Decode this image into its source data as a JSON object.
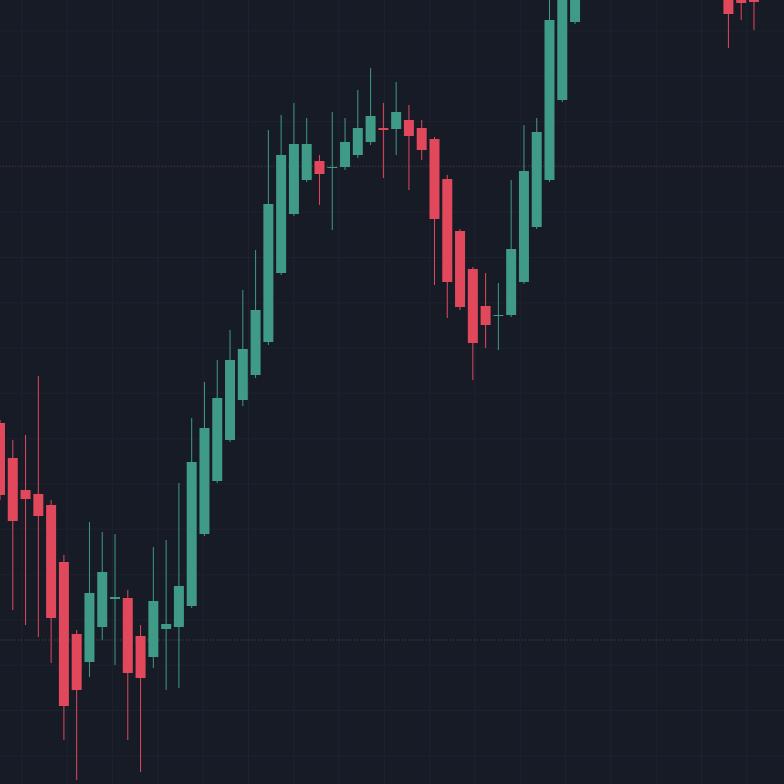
{
  "chart_data": {
    "type": "candlestick",
    "open": [
      361,
      326,
      294,
      290,
      279,
      222,
      150,
      122,
      157,
      185,
      186,
      148,
      127,
      155,
      157,
      178,
      250,
      303,
      344,
      384,
      409,
      442,
      511,
      570,
      604,
      623,
      616,
      617,
      629,
      642,
      656,
      655,
      664,
      656,
      645,
      605,
      553,
      515,
      478,
      468,
      469,
      502,
      557,
      604,
      684,
      762,
      null,
      null,
      null,
      null,
      null,
      null,
      null,
      null,
      null,
      null,
      null,
      800,
      790,
      790
    ],
    "high": [
      364,
      344,
      349,
      408,
      284,
      229,
      154,
      262,
      252,
      250,
      194,
      159,
      237,
      244,
      301,
      366,
      402,
      424,
      454,
      494,
      534,
      654,
      669,
      681,
      666,
      629,
      672,
      666,
      694,
      716,
      681,
      702,
      679,
      664,
      647,
      609,
      555,
      517,
      511,
      501,
      604,
      659,
      666,
      800,
      815,
      800,
      null,
      null,
      null,
      null,
      null,
      null,
      null,
      null,
      null,
      null,
      null,
      810,
      800,
      795
    ],
    "low": [
      284,
      174,
      159,
      147,
      121,
      44,
      4,
      107,
      144,
      119,
      44,
      12,
      116,
      94,
      96,
      176,
      248,
      301,
      342,
      378,
      406,
      439,
      509,
      568,
      602,
      579,
      554,
      614,
      626,
      639,
      606,
      629,
      594,
      624,
      499,
      466,
      474,
      404,
      436,
      434,
      467,
      500,
      555,
      602,
      682,
      760,
      null,
      null,
      null,
      null,
      null,
      null,
      null,
      null,
      null,
      null,
      null,
      736,
      764,
      754
    ],
    "close": [
      289,
      263,
      285,
      268,
      166,
      78,
      94,
      191,
      212,
      187,
      111,
      106,
      183,
      160,
      198,
      322,
      356,
      386,
      424,
      435,
      474,
      580,
      629,
      640,
      640,
      610,
      617,
      642,
      656,
      668,
      654,
      672,
      648,
      634,
      565,
      502,
      477,
      441,
      459,
      469,
      535,
      613,
      652,
      764,
      800,
      790,
      null,
      null,
      null,
      null,
      null,
      null,
      null,
      null,
      null,
      null,
      null,
      770,
      781,
      782
    ],
    "up_color": "#3f9a86",
    "down_color": "#e2485c",
    "ylim": [
      0,
      784
    ],
    "grid": true,
    "price_lines": [
      {
        "value": 618,
        "color": "#5c2b38"
      },
      {
        "value": 144,
        "color": "#454955"
      }
    ]
  }
}
